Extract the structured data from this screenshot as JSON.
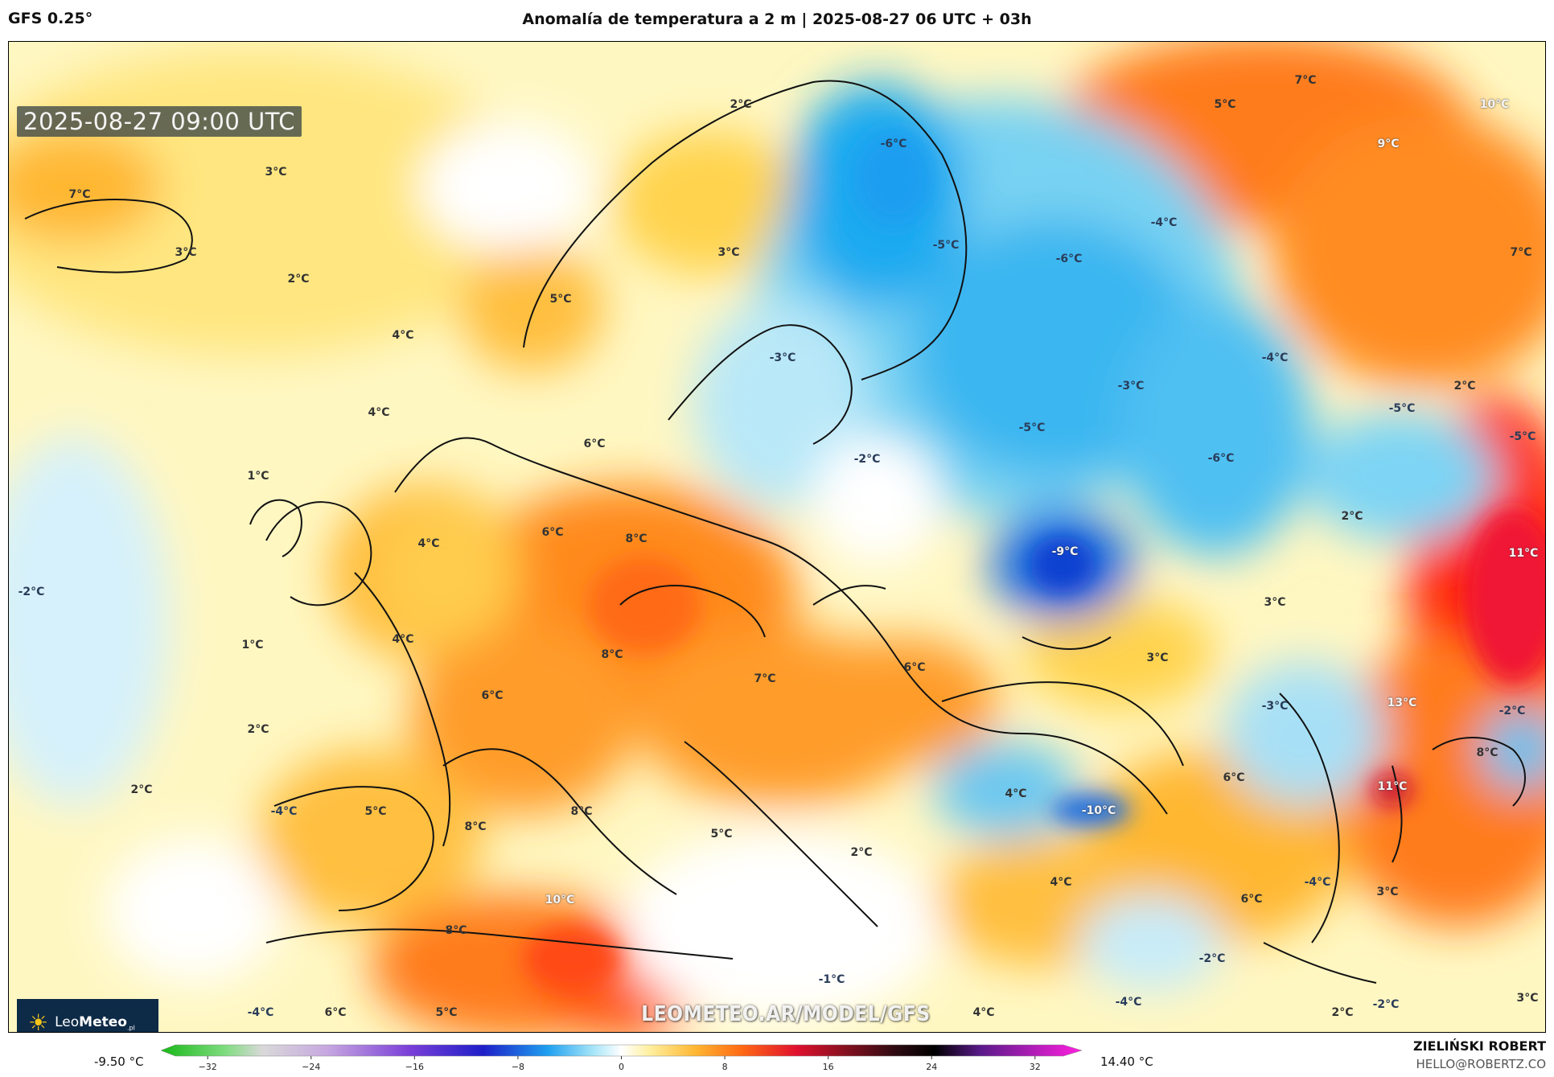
{
  "header": {
    "model": "GFS 0.25°",
    "title": "Anomalía de temperatura a 2 m | 2025-08-27 06 UTC + 03h"
  },
  "map": {
    "timestamp": "2025-08-27 09:00 UTC",
    "watermark": "LEOMETEO.AR/MODEL/GFS",
    "logo_text_a": "Leo",
    "logo_text_b": "Meteo",
    "logo_suffix": ".pl",
    "labels": [
      {
        "text": "2°C"
      },
      {
        "text": "5°C"
      },
      {
        "text": "7°C"
      },
      {
        "text": "10°C"
      },
      {
        "text": "-6°C"
      },
      {
        "text": "9°C"
      },
      {
        "text": "3°C"
      },
      {
        "text": "7°C"
      },
      {
        "text": "3°C"
      },
      {
        "text": "3°C"
      },
      {
        "text": "-5°C"
      },
      {
        "text": "-6°C"
      },
      {
        "text": "-4°C"
      },
      {
        "text": "7°C"
      },
      {
        "text": "2°C"
      },
      {
        "text": "5°C"
      },
      {
        "text": "4°C"
      },
      {
        "text": "-3°C"
      },
      {
        "text": "-4°C"
      },
      {
        "text": "-3°C"
      },
      {
        "text": "2°C"
      },
      {
        "text": "4°C"
      },
      {
        "text": "-5°C"
      },
      {
        "text": "-5°C"
      },
      {
        "text": "-5°C"
      },
      {
        "text": "6°C"
      },
      {
        "text": "-2°C"
      },
      {
        "text": "-6°C"
      },
      {
        "text": "1°C"
      },
      {
        "text": "2°C"
      },
      {
        "text": "6°C"
      },
      {
        "text": "8°C"
      },
      {
        "text": "4°C"
      },
      {
        "text": "-9°C"
      },
      {
        "text": "11°C"
      },
      {
        "text": "-2°C"
      },
      {
        "text": "3°C"
      },
      {
        "text": "1°C"
      },
      {
        "text": "4°C"
      },
      {
        "text": "8°C"
      },
      {
        "text": "3°C"
      },
      {
        "text": "6°C"
      },
      {
        "text": "7°C"
      },
      {
        "text": "6°C"
      },
      {
        "text": "2°C"
      },
      {
        "text": "-3°C"
      },
      {
        "text": "13°C"
      },
      {
        "text": "-2°C"
      },
      {
        "text": "8°C"
      },
      {
        "text": "2°C"
      },
      {
        "text": "4°C"
      },
      {
        "text": "6°C"
      },
      {
        "text": "11°C"
      },
      {
        "text": "-4°C"
      },
      {
        "text": "5°C"
      },
      {
        "text": "8°C"
      },
      {
        "text": "8°C"
      },
      {
        "text": "5°C"
      },
      {
        "text": "-10°C"
      },
      {
        "text": "2°C"
      },
      {
        "text": "4°C"
      },
      {
        "text": "-4°C"
      },
      {
        "text": "3°C"
      },
      {
        "text": "6°C"
      },
      {
        "text": "10°C"
      },
      {
        "text": "8°C"
      },
      {
        "text": "-2°C"
      },
      {
        "text": "-1°C"
      },
      {
        "text": "-4°C"
      },
      {
        "text": "-4°C"
      },
      {
        "text": "6°C"
      },
      {
        "text": "5°C"
      },
      {
        "text": "4°C"
      },
      {
        "text": "2°C"
      },
      {
        "text": "-2°C"
      },
      {
        "text": "3°C"
      }
    ]
  },
  "colorbar": {
    "min_label": "-9.50 °C",
    "max_label": "14.40 °C",
    "ticks": [
      "−32",
      "−24",
      "−16",
      "−8",
      "0",
      "8",
      "16",
      "24",
      "32"
    ],
    "tick_values": [
      -32,
      -24,
      -16,
      -8,
      0,
      8,
      16,
      24,
      32
    ],
    "range": [
      -35,
      35
    ]
  },
  "credit": {
    "author": "ZIELIŃSKI ROBERT",
    "email": "HELLO@ROBERTZ.CO"
  }
}
